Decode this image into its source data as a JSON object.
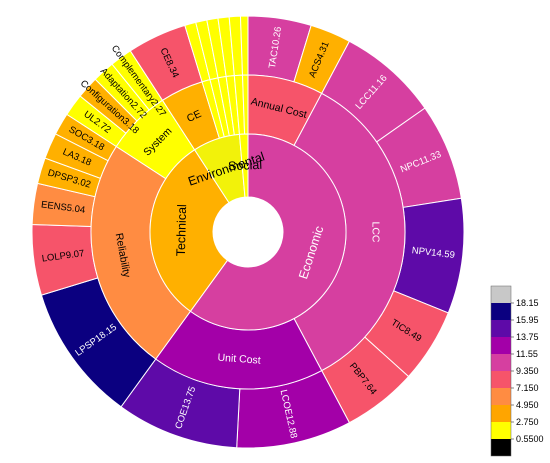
{
  "chart_data": {
    "type": "sunburst",
    "colorbar": {
      "ticks": [
        "18.15",
        "15.95",
        "13.75",
        "11.55",
        "9.350",
        "7.150",
        "4.950",
        "2.750",
        "0.5500"
      ],
      "bands": [
        "#000000",
        "#ffff00",
        "#ffa500",
        "#ff8c42",
        "#f6546a",
        "#d63fa0",
        "#a300a8",
        "#5e0aa8",
        "#0b0080",
        "#c8c8c8"
      ]
    },
    "inner_ring": [
      {
        "label": "Economic",
        "start": 0,
        "end": 216,
        "color": "#d63fa0",
        "text_color": "#ffffff"
      },
      {
        "label": "Technical",
        "start": 216,
        "end": 327,
        "color": "#ffb000",
        "text_color": "#000000"
      },
      {
        "label": "Environmental",
        "start": 327,
        "end": 355,
        "color": "#f2f20a",
        "text_color": "#000000"
      },
      {
        "label": "Social",
        "start": 355,
        "end": 360,
        "color": "#ffff00",
        "text_color": "#000000"
      }
    ],
    "middle_ring": [
      {
        "label": "Annual Cost",
        "start": 0,
        "end": 28,
        "color": "#f6546a",
        "text_color": "#000000"
      },
      {
        "label": "LCC",
        "start": 28,
        "end": 152,
        "color": "#d63fa0",
        "text_color": "#ffffff"
      },
      {
        "label": "Unit Cost",
        "start": 152,
        "end": 216,
        "color": "#a300a8",
        "text_color": "#ffffff"
      },
      {
        "label": "Reliability",
        "start": 216,
        "end": 303,
        "color": "#ff8c42",
        "text_color": "#000000"
      },
      {
        "label": "System",
        "start": 303,
        "end": 327,
        "color": "#ffff00",
        "text_color": "#000000"
      },
      {
        "label": "CE",
        "start": 327,
        "end": 343,
        "color": "#ffb000",
        "text_color": "#000000"
      },
      {
        "label": "",
        "start": 343,
        "end": 346,
        "color": "#ffff00",
        "text_color": "#000000"
      },
      {
        "label": "",
        "start": 346,
        "end": 349,
        "color": "#ffff00",
        "text_color": "#000000"
      },
      {
        "label": "",
        "start": 349,
        "end": 352,
        "color": "#ffff00",
        "text_color": "#000000"
      },
      {
        "label": "",
        "start": 352,
        "end": 355,
        "color": "#ffff00",
        "text_color": "#000000"
      },
      {
        "label": "",
        "start": 355,
        "end": 358,
        "color": "#ffff00",
        "text_color": "#000000"
      },
      {
        "label": "",
        "start": 358,
        "end": 360,
        "color": "#ffff00",
        "text_color": "#000000"
      }
    ],
    "outer_ring": [
      {
        "label": "TAC10.26",
        "start": 0,
        "end": 17,
        "color": "#d63fa0",
        "text_color": "#ffffff"
      },
      {
        "label": "ACS4.31",
        "start": 17,
        "end": 28,
        "color": "#ffb000",
        "text_color": "#000000"
      },
      {
        "label": "LCC11.16",
        "start": 28,
        "end": 55,
        "color": "#d63fa0",
        "text_color": "#ffffff"
      },
      {
        "label": "NPC11.33",
        "start": 55,
        "end": 81,
        "color": "#d63fa0",
        "text_color": "#ffffff"
      },
      {
        "label": "NPV14.59",
        "start": 81,
        "end": 112,
        "color": "#5e0aa8",
        "text_color": "#ffffff"
      },
      {
        "label": "TIC8.49",
        "start": 112,
        "end": 132,
        "color": "#f6546a",
        "text_color": "#000000"
      },
      {
        "label": "PBP7.64",
        "start": 132,
        "end": 152,
        "color": "#f6546a",
        "text_color": "#000000"
      },
      {
        "label": "LCOE12.88",
        "start": 152,
        "end": 183,
        "color": "#a300a8",
        "text_color": "#ffffff"
      },
      {
        "label": "COE13.75",
        "start": 183,
        "end": 216,
        "color": "#5e0aa8",
        "text_color": "#ffffff"
      },
      {
        "label": "LPSP18.15",
        "start": 216,
        "end": 253,
        "color": "#0b0080",
        "text_color": "#ffffff"
      },
      {
        "label": "LOLP9.07",
        "start": 253,
        "end": 272,
        "color": "#f6546a",
        "text_color": "#000000"
      },
      {
        "label": "EENS5.04",
        "start": 272,
        "end": 283,
        "color": "#ff8c42",
        "text_color": "#000000"
      },
      {
        "label": "DPSP3.02",
        "start": 283,
        "end": 290,
        "color": "#ffb000",
        "text_color": "#000000"
      },
      {
        "label": "LA3.18",
        "start": 290,
        "end": 297,
        "color": "#ffb000",
        "text_color": "#000000"
      },
      {
        "label": "SOC3.18",
        "start": 297,
        "end": 303,
        "color": "#ffb000",
        "text_color": "#000000"
      },
      {
        "label": "UL2.72",
        "start": 303,
        "end": 309,
        "color": "#ffff00",
        "text_color": "#000000"
      },
      {
        "label": "Configuration3.18",
        "start": 309,
        "end": 315,
        "color": "#ffb000",
        "text_color": "#000000"
      },
      {
        "label": "Adaptation2.72",
        "start": 315,
        "end": 321,
        "color": "#ffff00",
        "text_color": "#000000"
      },
      {
        "label": "Complementary2.27",
        "start": 321,
        "end": 327,
        "color": "#ffff00",
        "text_color": "#000000"
      },
      {
        "label": "CE8.34",
        "start": 327,
        "end": 343,
        "color": "#f6546a",
        "text_color": "#000000"
      },
      {
        "label": "",
        "start": 343,
        "end": 346,
        "color": "#ffff00",
        "text_color": "#000000"
      },
      {
        "label": "",
        "start": 346,
        "end": 349,
        "color": "#ffff00",
        "text_color": "#000000"
      },
      {
        "label": "",
        "start": 349,
        "end": 352,
        "color": "#ffff00",
        "text_color": "#000000"
      },
      {
        "label": "",
        "start": 352,
        "end": 355,
        "color": "#ffff00",
        "text_color": "#000000"
      },
      {
        "label": "",
        "start": 355,
        "end": 358,
        "color": "#ffff00",
        "text_color": "#000000"
      },
      {
        "label": "",
        "start": 358,
        "end": 360,
        "color": "#ffff00",
        "text_color": "#000000"
      }
    ]
  }
}
